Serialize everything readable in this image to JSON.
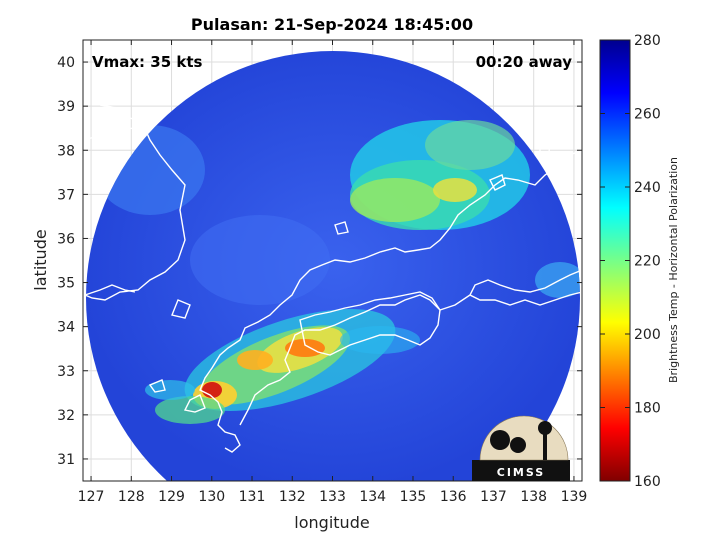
{
  "title": "Pulasan: 21-Sep-2024 18:45:00",
  "annotations": {
    "vmax": "Vmax: 35 kts",
    "time_away": "00:20 away"
  },
  "axes": {
    "xlabel": "longitude",
    "ylabel": "latitude",
    "xlim": [
      126.8,
      139.2
    ],
    "ylim": [
      30.5,
      40.5
    ],
    "xticks": [
      "127",
      "128",
      "129",
      "130",
      "131",
      "132",
      "133",
      "134",
      "135",
      "136",
      "137",
      "138",
      "139"
    ],
    "yticks": [
      "31",
      "32",
      "33",
      "34",
      "35",
      "36",
      "37",
      "38",
      "39",
      "40"
    ],
    "grid": true
  },
  "colorbar": {
    "label": "Brightness Temp - Horizontal Polarization",
    "range": [
      160,
      280
    ],
    "ticks": [
      "160",
      "180",
      "200",
      "220",
      "240",
      "260",
      "280"
    ],
    "colormap": "jet"
  },
  "logo": {
    "text": "CIMSS"
  },
  "colors": {
    "warm": "#1f3fd6",
    "background_field": "#2a4be6",
    "coastline": "#ffffff"
  }
}
